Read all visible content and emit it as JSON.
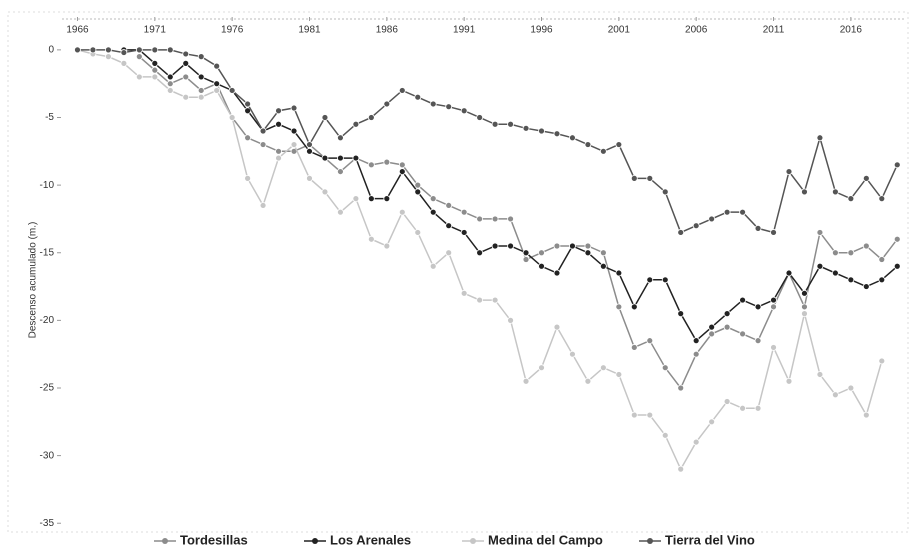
{
  "chart_data": {
    "type": "line",
    "y_label": "Descenso acumulado (m.)",
    "x": [
      1966,
      1967,
      1968,
      1969,
      1970,
      1971,
      1972,
      1973,
      1974,
      1975,
      1976,
      1977,
      1978,
      1979,
      1980,
      1981,
      1982,
      1983,
      1984,
      1985,
      1986,
      1987,
      1988,
      1989,
      1990,
      1991,
      1992,
      1993,
      1994,
      1995,
      1996,
      1997,
      1998,
      1999,
      2000,
      2001,
      2002,
      2003,
      2004,
      2005,
      2006,
      2007,
      2008,
      2009,
      2010,
      2011,
      2012,
      2013,
      2014,
      2015,
      2016,
      2017,
      2018,
      2019
    ],
    "xlim": [
      1965,
      2019.5
    ],
    "xticks": [
      1966,
      1971,
      1976,
      1981,
      1986,
      1991,
      1996,
      2001,
      2006,
      2011,
      2016
    ],
    "ylim": [
      -35.5,
      2.8
    ],
    "yticks": [
      0,
      -5,
      -10,
      -15,
      -20,
      -25,
      -30,
      -35
    ],
    "legend": "bottom",
    "series": [
      {
        "name": "Tordesillas",
        "color": "#8c8c8c",
        "values": [
          null,
          null,
          null,
          null,
          -0.5,
          -1.5,
          -2.5,
          -2,
          -3,
          -2.5,
          -5,
          -6.5,
          -7,
          -7.5,
          -7.5,
          -7,
          -8,
          -9,
          -8,
          -8.5,
          -8.3,
          -8.5,
          -10,
          -11,
          -11.5,
          -12,
          -12.5,
          -12.5,
          -12.5,
          -15.5,
          -15,
          -14.5,
          -14.5,
          -14.5,
          -15,
          -19,
          -22,
          -21.5,
          -23.5,
          -25,
          -22.5,
          -21,
          -20.5,
          -21,
          -21.5,
          -19,
          -16.5,
          -19,
          -13.5,
          -15,
          -15,
          -14.5,
          -15.5,
          -14
        ]
      },
      {
        "name": "Los Arenales",
        "color": "#222222",
        "values": [
          null,
          null,
          null,
          0,
          0,
          -1,
          -2,
          -1,
          -2,
          -2.5,
          -3,
          -4.5,
          -6,
          -5.5,
          -6,
          -7.5,
          -8,
          -8,
          -8,
          -11,
          -11,
          -9,
          -10.5,
          -12,
          -13,
          -13.5,
          -15,
          -14.5,
          -14.5,
          -15,
          -16,
          -16.5,
          -14.5,
          -15,
          -16,
          -16.5,
          -19,
          -17,
          -17,
          -19.5,
          -21.5,
          -20.5,
          -19.5,
          -18.5,
          -19,
          -18.5,
          -16.5,
          -18,
          -16,
          -16.5,
          -17,
          -17.5,
          -17,
          -16
        ]
      },
      {
        "name": "Medina del Campo",
        "color": "#c6c6c6",
        "values": [
          0,
          -0.3,
          -0.5,
          -1,
          -2,
          -2,
          -3,
          -3.5,
          -3.5,
          -3,
          -5,
          -9.5,
          -11.5,
          -8,
          -7,
          -9.5,
          -10.5,
          -12,
          -11,
          -14,
          -14.5,
          -12,
          -13.5,
          -16,
          -15,
          -18,
          -18.5,
          -18.5,
          -20,
          -24.5,
          -23.5,
          -20.5,
          -22.5,
          -24.5,
          -23.5,
          -24,
          -27,
          -27,
          -28.5,
          -31,
          -29,
          -27.5,
          -26,
          -26.5,
          -26.5,
          -22,
          -24.5,
          -19.5,
          -24,
          -25.5,
          -25,
          -27,
          -23,
          null
        ]
      },
      {
        "name": "Tierra del Vino",
        "color": "#555555",
        "values": [
          0,
          0,
          0,
          -0.2,
          0,
          0,
          0,
          -0.3,
          -0.5,
          -1.2,
          -3,
          -4,
          -6,
          -4.5,
          -4.3,
          -7,
          -5,
          -6.5,
          -5.5,
          -5,
          -4,
          -3,
          -3.5,
          -4,
          -4.2,
          -4.5,
          -5,
          -5.5,
          -5.5,
          -5.8,
          -6,
          -6.2,
          -6.5,
          -7,
          -7.5,
          -7,
          -9.5,
          -9.5,
          -10.5,
          -13.5,
          -13,
          -12.5,
          -12,
          -12,
          -13.2,
          -13.5,
          -9,
          -10.5,
          -6.5,
          -10.5,
          -11,
          -9.5,
          -11,
          -8.5
        ]
      }
    ]
  }
}
